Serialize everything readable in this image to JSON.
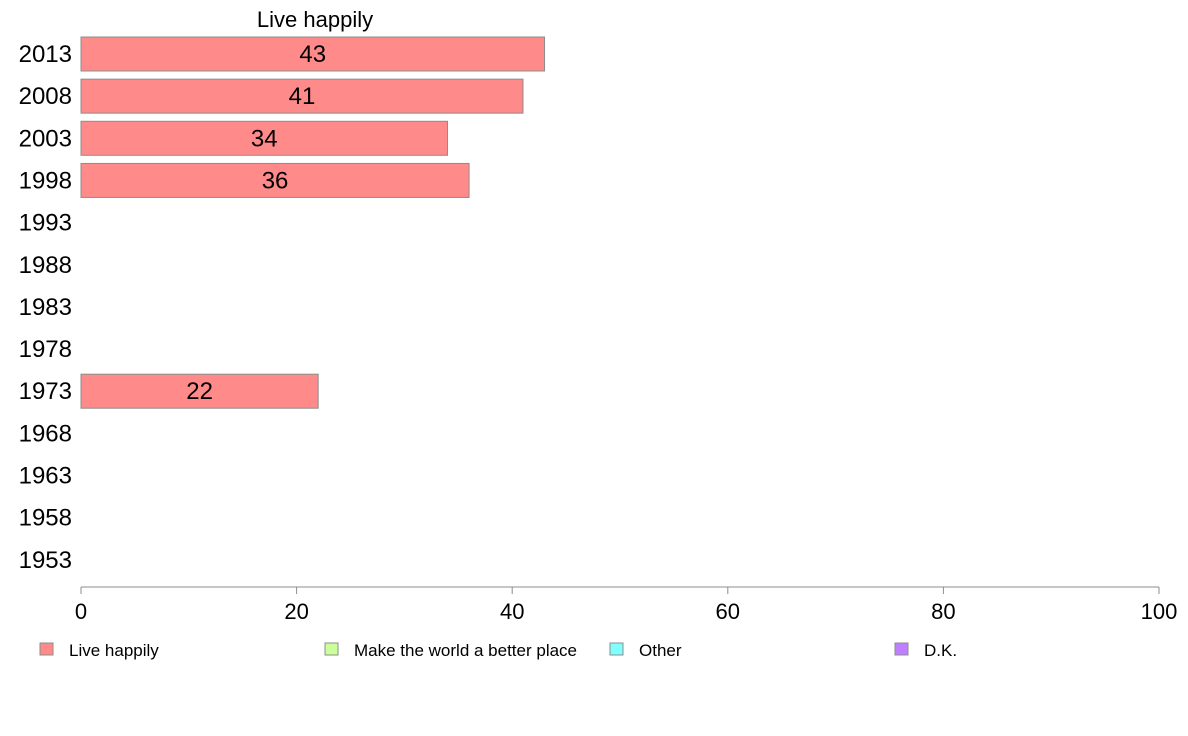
{
  "chart_data": {
    "type": "bar",
    "orientation": "horizontal",
    "title": "Live happily",
    "categories": [
      "2013",
      "2008",
      "2003",
      "1998",
      "1993",
      "1988",
      "1983",
      "1978",
      "1973",
      "1968",
      "1963",
      "1958",
      "1953"
    ],
    "series": [
      {
        "name": "Live happily",
        "color": "#ff8a8a",
        "values": [
          43,
          41,
          34,
          36,
          null,
          null,
          null,
          null,
          22,
          null,
          null,
          null,
          null
        ]
      }
    ],
    "xlim": [
      0,
      100
    ],
    "xticks": [
      0,
      20,
      40,
      60,
      80,
      100
    ],
    "grid": false,
    "legend": {
      "placement": "bottom",
      "entries": [
        {
          "label": "Live happily",
          "color": "#ff8a8a"
        },
        {
          "label": "Make the world a better place",
          "color": "#ccff99"
        },
        {
          "label": "Other",
          "color": "#80ffff"
        },
        {
          "label": "D.K.",
          "color": "#bf80ff"
        }
      ]
    }
  }
}
